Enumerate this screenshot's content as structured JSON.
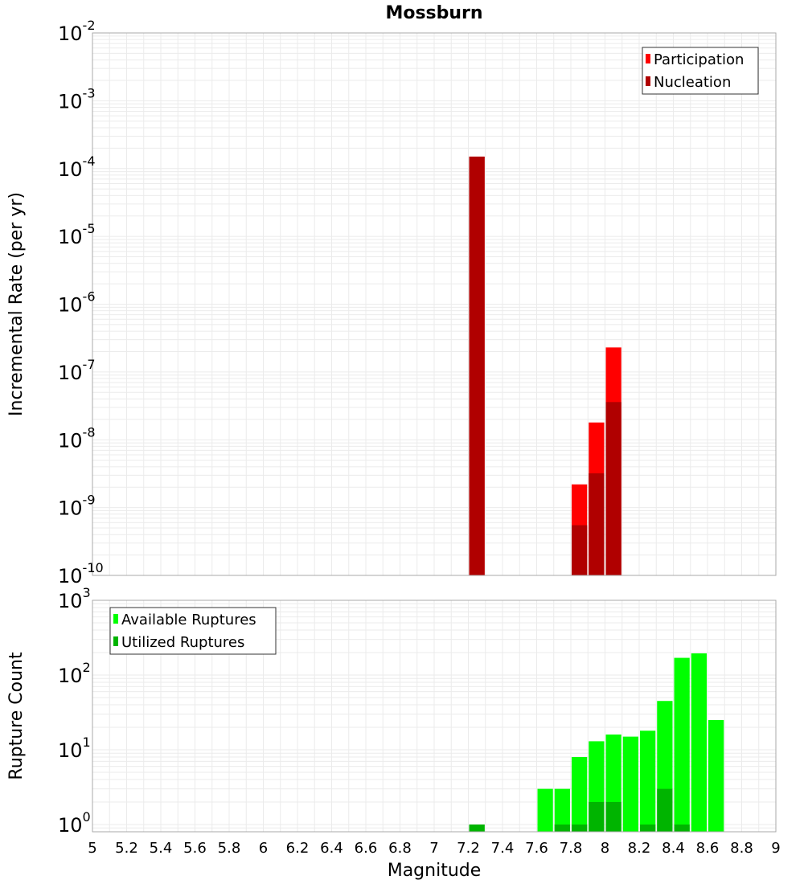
{
  "chart_data": [
    {
      "type": "bar",
      "title": "Mossburn",
      "xlabel": "",
      "ylabel": "Incremental Rate (per yr)",
      "yscale": "log",
      "ylim": [
        1e-10,
        0.01
      ],
      "xlim": [
        5,
        9
      ],
      "grid": true,
      "legend_position": "top-right",
      "y_tick_labels": [
        "10^-10",
        "10^-9",
        "10^-8",
        "10^-7",
        "10^-6",
        "10^-5",
        "10^-4",
        "10^-3",
        "10^-2"
      ],
      "series": [
        {
          "name": "Participation",
          "color": "#ff0000",
          "x": [
            7.25,
            7.85,
            7.95,
            8.05
          ],
          "values": [
            0.00015,
            2.2e-09,
            1.8e-08,
            2.3e-07
          ]
        },
        {
          "name": "Nucleation",
          "color": "#b00000",
          "x": [
            7.25,
            7.85,
            7.95,
            8.05
          ],
          "values": [
            0.00015,
            5.5e-10,
            3.2e-09,
            3.6e-08
          ]
        }
      ]
    },
    {
      "type": "bar",
      "title": "",
      "xlabel": "Magnitude",
      "ylabel": "Rupture Count",
      "yscale": "log",
      "ylim": [
        0.8,
        1000
      ],
      "xlim": [
        5,
        9
      ],
      "grid": true,
      "legend_position": "top-left",
      "x_tick_labels": [
        "5",
        "5.2",
        "5.4",
        "5.6",
        "5.8",
        "6",
        "6.2",
        "6.4",
        "6.6",
        "6.8",
        "7",
        "7.2",
        "7.4",
        "7.6",
        "7.8",
        "8",
        "8.2",
        "8.4",
        "8.6",
        "8.8",
        "9"
      ],
      "y_tick_labels": [
        "10^0",
        "10^1",
        "10^2",
        "10^3"
      ],
      "series": [
        {
          "name": "Available Ruptures",
          "color": "#00ff00",
          "x": [
            7.25,
            7.65,
            7.75,
            7.85,
            7.95,
            8.05,
            8.15,
            8.25,
            8.35,
            8.45,
            8.55,
            8.65
          ],
          "values": [
            1,
            3,
            3,
            8,
            13,
            16,
            15,
            18,
            45,
            170,
            195,
            25
          ]
        },
        {
          "name": "Utilized Ruptures",
          "color": "#00b400",
          "x": [
            7.25,
            7.75,
            7.85,
            7.95,
            8.05,
            8.25,
            8.35,
            8.45
          ],
          "values": [
            1,
            1,
            1,
            2,
            2,
            1,
            3,
            1
          ]
        }
      ]
    }
  ]
}
